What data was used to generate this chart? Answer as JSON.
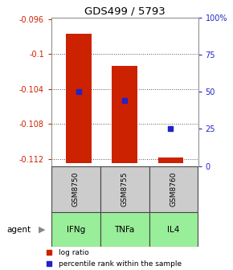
{
  "title": "GDS499 / 5793",
  "samples": [
    "GSM8750",
    "GSM8755",
    "GSM8760"
  ],
  "agents": [
    "IFNg",
    "TNFa",
    "IL4"
  ],
  "log_ratios": [
    -0.0977,
    -0.1013,
    -0.1118
  ],
  "baseline": -0.1125,
  "percentile_ranks": [
    50,
    44,
    25
  ],
  "ylim_left": [
    -0.1128,
    -0.0958
  ],
  "ylim_right": [
    0,
    100
  ],
  "yticks_left": [
    -0.112,
    -0.108,
    -0.104,
    -0.1,
    -0.096
  ],
  "yticks_right": [
    0,
    25,
    50,
    75,
    100
  ],
  "bar_color": "#cc2200",
  "dot_color": "#2222cc",
  "sample_box_color": "#cccccc",
  "agent_box_color": "#99ee99",
  "border_color": "#444444",
  "background_color": "#ffffff",
  "left_label_color": "#cc2200",
  "right_label_color": "#2222cc",
  "title_color": "#000000",
  "bar_width": 0.55,
  "bar_positions": [
    0,
    1,
    2
  ]
}
